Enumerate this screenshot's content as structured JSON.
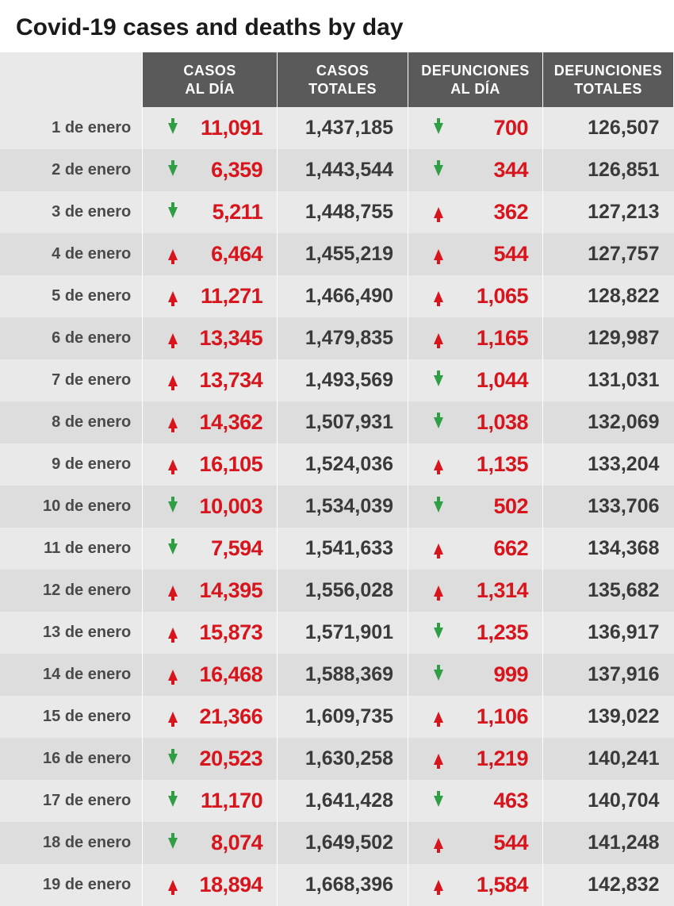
{
  "title": "Covid-19 cases and deaths by day",
  "colors": {
    "header_bg": "#5a5a5a",
    "header_text": "#ffffff",
    "row_odd_bg": "#e9e9e9",
    "row_even_bg": "#dddddd",
    "daily_value": "#d8151c",
    "total_value": "#3a3a3a",
    "date_text": "#4a4a4a",
    "arrow_up": "#d8151c",
    "arrow_down": "#2f9e44"
  },
  "typography": {
    "title_fontsize": 30,
    "header_fontsize": 18,
    "date_fontsize": 20,
    "daily_fontsize": 27,
    "total_fontsize": 25
  },
  "columns": [
    {
      "key": "date",
      "label": ""
    },
    {
      "key": "cases_daily",
      "label": "CASOS\nAL DÍA"
    },
    {
      "key": "cases_total",
      "label": "CASOS\nTOTALES"
    },
    {
      "key": "deaths_daily",
      "label": "DEFUNCIONES\nAL DÍA"
    },
    {
      "key": "deaths_total",
      "label": "DEFUNCIONES\nTOTALES"
    }
  ],
  "rows": [
    {
      "date": "1 de enero",
      "cases_daily": "11,091",
      "cases_dir": "down",
      "cases_total": "1,437,185",
      "deaths_daily": "700",
      "deaths_dir": "down",
      "deaths_total": "126,507"
    },
    {
      "date": "2 de enero",
      "cases_daily": "6,359",
      "cases_dir": "down",
      "cases_total": "1,443,544",
      "deaths_daily": "344",
      "deaths_dir": "down",
      "deaths_total": "126,851"
    },
    {
      "date": "3 de enero",
      "cases_daily": "5,211",
      "cases_dir": "down",
      "cases_total": "1,448,755",
      "deaths_daily": "362",
      "deaths_dir": "up",
      "deaths_total": "127,213"
    },
    {
      "date": "4 de enero",
      "cases_daily": "6,464",
      "cases_dir": "up",
      "cases_total": "1,455,219",
      "deaths_daily": "544",
      "deaths_dir": "up",
      "deaths_total": "127,757"
    },
    {
      "date": "5 de enero",
      "cases_daily": "11,271",
      "cases_dir": "up",
      "cases_total": "1,466,490",
      "deaths_daily": "1,065",
      "deaths_dir": "up",
      "deaths_total": "128,822"
    },
    {
      "date": "6 de enero",
      "cases_daily": "13,345",
      "cases_dir": "up",
      "cases_total": "1,479,835",
      "deaths_daily": "1,165",
      "deaths_dir": "up",
      "deaths_total": "129,987"
    },
    {
      "date": "7 de enero",
      "cases_daily": "13,734",
      "cases_dir": "up",
      "cases_total": "1,493,569",
      "deaths_daily": "1,044",
      "deaths_dir": "down",
      "deaths_total": "131,031"
    },
    {
      "date": "8 de enero",
      "cases_daily": "14,362",
      "cases_dir": "up",
      "cases_total": "1,507,931",
      "deaths_daily": "1,038",
      "deaths_dir": "down",
      "deaths_total": "132,069"
    },
    {
      "date": "9 de enero",
      "cases_daily": "16,105",
      "cases_dir": "up",
      "cases_total": "1,524,036",
      "deaths_daily": "1,135",
      "deaths_dir": "up",
      "deaths_total": "133,204"
    },
    {
      "date": "10 de enero",
      "cases_daily": "10,003",
      "cases_dir": "down",
      "cases_total": "1,534,039",
      "deaths_daily": "502",
      "deaths_dir": "down",
      "deaths_total": "133,706"
    },
    {
      "date": "11 de enero",
      "cases_daily": "7,594",
      "cases_dir": "down",
      "cases_total": "1,541,633",
      "deaths_daily": "662",
      "deaths_dir": "up",
      "deaths_total": "134,368"
    },
    {
      "date": "12 de enero",
      "cases_daily": "14,395",
      "cases_dir": "up",
      "cases_total": "1,556,028",
      "deaths_daily": "1,314",
      "deaths_dir": "up",
      "deaths_total": "135,682"
    },
    {
      "date": "13 de enero",
      "cases_daily": "15,873",
      "cases_dir": "up",
      "cases_total": "1,571,901",
      "deaths_daily": "1,235",
      "deaths_dir": "down",
      "deaths_total": "136,917"
    },
    {
      "date": "14 de enero",
      "cases_daily": "16,468",
      "cases_dir": "up",
      "cases_total": "1,588,369",
      "deaths_daily": "999",
      "deaths_dir": "down",
      "deaths_total": "137,916"
    },
    {
      "date": "15 de enero",
      "cases_daily": "21,366",
      "cases_dir": "up",
      "cases_total": "1,609,735",
      "deaths_daily": "1,106",
      "deaths_dir": "up",
      "deaths_total": "139,022"
    },
    {
      "date": "16 de enero",
      "cases_daily": "20,523",
      "cases_dir": "down",
      "cases_total": "1,630,258",
      "deaths_daily": "1,219",
      "deaths_dir": "up",
      "deaths_total": "140,241"
    },
    {
      "date": "17 de enero",
      "cases_daily": "11,170",
      "cases_dir": "down",
      "cases_total": "1,641,428",
      "deaths_daily": "463",
      "deaths_dir": "down",
      "deaths_total": "140,704"
    },
    {
      "date": "18 de enero",
      "cases_daily": "8,074",
      "cases_dir": "down",
      "cases_total": "1,649,502",
      "deaths_daily": "544",
      "deaths_dir": "up",
      "deaths_total": "141,248"
    },
    {
      "date": "19 de enero",
      "cases_daily": "18,894",
      "cases_dir": "up",
      "cases_total": "1,668,396",
      "deaths_daily": "1,584",
      "deaths_dir": "up",
      "deaths_total": "142,832"
    }
  ]
}
